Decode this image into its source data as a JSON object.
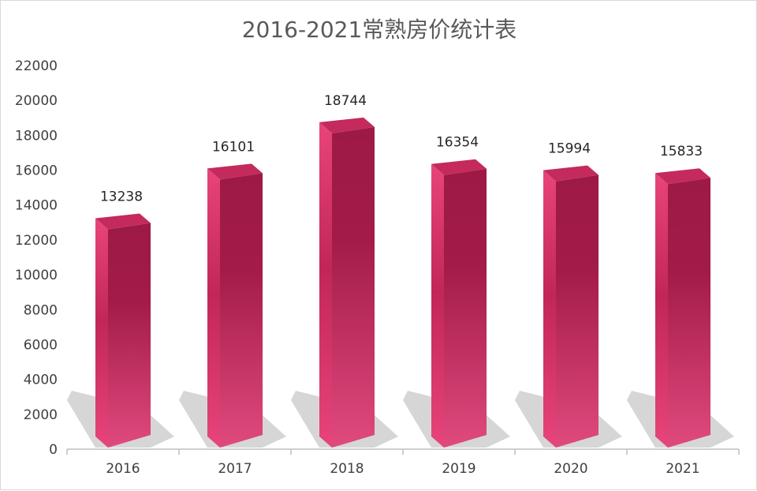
{
  "chart_data": {
    "type": "bar",
    "title": "2016-2021常熟房价统计表",
    "categories": [
      "2016",
      "2017",
      "2018",
      "2019",
      "2020",
      "2021"
    ],
    "values": [
      13238,
      16101,
      18744,
      16354,
      15994,
      15833
    ],
    "ylim": [
      0,
      22000
    ],
    "ytick_step": 2000,
    "yticks": [
      "0",
      "2000",
      "4000",
      "6000",
      "8000",
      "10000",
      "12000",
      "14000",
      "16000",
      "18000",
      "20000",
      "22000"
    ],
    "data_labels": [
      "13238",
      "16101",
      "18744",
      "16354",
      "15994",
      "15833"
    ],
    "grid": false,
    "legend": "none",
    "bar_style": "3d-prism",
    "colors": {
      "bar_light": "#e8457a",
      "bar_dark": "#9e1a46",
      "bar_top": "#c42a5c",
      "shadow": "#cfcfcf",
      "axis": "#bfbfbf",
      "title": "#595959"
    }
  }
}
